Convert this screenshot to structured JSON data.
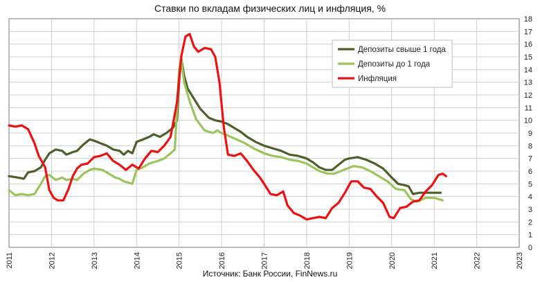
{
  "chart_data": {
    "type": "line",
    "title": "Ставки по вкладам физических лиц и инфляция, %",
    "source": "Источник: Банк России, FinNews.ru",
    "x_ticks": [
      "2011",
      "2012",
      "2013",
      "2014",
      "2015",
      "2016",
      "2017",
      "2018",
      "2019",
      "2020",
      "2021",
      "2022",
      "2023"
    ],
    "y_ticks": [
      "0",
      "1",
      "2",
      "3",
      "4",
      "5",
      "6",
      "7",
      "8",
      "9",
      "10",
      "11",
      "12",
      "13",
      "14",
      "15",
      "16",
      "17",
      "18"
    ],
    "xlim": [
      2011,
      2023
    ],
    "ylim": [
      0,
      18
    ],
    "grid": true,
    "legend_position": "top-right",
    "series": [
      {
        "name": "Депозиты свыше 1 года",
        "color": "#4f5f2a",
        "points": [
          [
            2011.0,
            5.6
          ],
          [
            2011.2,
            5.5
          ],
          [
            2011.35,
            5.4
          ],
          [
            2011.45,
            5.9
          ],
          [
            2011.6,
            6.0
          ],
          [
            2011.75,
            6.3
          ],
          [
            2011.85,
            6.9
          ],
          [
            2011.95,
            7.4
          ],
          [
            2012.1,
            7.7
          ],
          [
            2012.25,
            7.6
          ],
          [
            2012.35,
            7.3
          ],
          [
            2012.5,
            7.5
          ],
          [
            2012.6,
            7.6
          ],
          [
            2012.75,
            8.1
          ],
          [
            2012.9,
            8.5
          ],
          [
            2013.0,
            8.4
          ],
          [
            2013.15,
            8.2
          ],
          [
            2013.3,
            8.0
          ],
          [
            2013.45,
            7.7
          ],
          [
            2013.6,
            7.6
          ],
          [
            2013.7,
            7.3
          ],
          [
            2013.8,
            7.6
          ],
          [
            2013.9,
            7.4
          ],
          [
            2014.0,
            8.3
          ],
          [
            2014.15,
            8.5
          ],
          [
            2014.3,
            8.7
          ],
          [
            2014.4,
            8.9
          ],
          [
            2014.55,
            8.7
          ],
          [
            2014.7,
            9.0
          ],
          [
            2014.85,
            9.4
          ],
          [
            2014.95,
            10.0
          ],
          [
            2015.0,
            13.0
          ],
          [
            2015.05,
            14.9
          ],
          [
            2015.12,
            13.5
          ],
          [
            2015.2,
            12.5
          ],
          [
            2015.35,
            11.7
          ],
          [
            2015.5,
            10.9
          ],
          [
            2015.7,
            10.2
          ],
          [
            2015.85,
            10.0
          ],
          [
            2016.0,
            9.9
          ],
          [
            2016.15,
            9.7
          ],
          [
            2016.3,
            9.4
          ],
          [
            2016.45,
            9.1
          ],
          [
            2016.6,
            8.7
          ],
          [
            2016.8,
            8.3
          ],
          [
            2017.0,
            8.0
          ],
          [
            2017.2,
            7.8
          ],
          [
            2017.4,
            7.6
          ],
          [
            2017.6,
            7.3
          ],
          [
            2017.8,
            7.2
          ],
          [
            2018.0,
            7.0
          ],
          [
            2018.15,
            6.7
          ],
          [
            2018.3,
            6.3
          ],
          [
            2018.45,
            6.1
          ],
          [
            2018.6,
            6.1
          ],
          [
            2018.75,
            6.5
          ],
          [
            2018.9,
            6.9
          ],
          [
            2019.0,
            7.0
          ],
          [
            2019.2,
            7.1
          ],
          [
            2019.4,
            6.9
          ],
          [
            2019.6,
            6.6
          ],
          [
            2019.8,
            6.2
          ],
          [
            2020.0,
            5.5
          ],
          [
            2020.15,
            5.0
          ],
          [
            2020.3,
            4.9
          ],
          [
            2020.4,
            4.8
          ],
          [
            2020.5,
            4.2
          ],
          [
            2020.65,
            4.3
          ],
          [
            2020.8,
            4.3
          ],
          [
            2021.0,
            4.3
          ],
          [
            2021.15,
            4.3
          ]
        ]
      },
      {
        "name": "Депозиты до 1 года",
        "color": "#9cc45c",
        "points": [
          [
            2011.0,
            4.5
          ],
          [
            2011.15,
            4.1
          ],
          [
            2011.3,
            4.2
          ],
          [
            2011.45,
            4.1
          ],
          [
            2011.6,
            4.2
          ],
          [
            2011.75,
            5.0
          ],
          [
            2011.85,
            5.6
          ],
          [
            2011.95,
            5.7
          ],
          [
            2012.1,
            5.3
          ],
          [
            2012.25,
            5.5
          ],
          [
            2012.35,
            5.3
          ],
          [
            2012.5,
            5.4
          ],
          [
            2012.6,
            5.3
          ],
          [
            2012.75,
            5.8
          ],
          [
            2012.9,
            6.1
          ],
          [
            2013.0,
            6.2
          ],
          [
            2013.2,
            6.1
          ],
          [
            2013.35,
            5.8
          ],
          [
            2013.5,
            5.5
          ],
          [
            2013.6,
            5.4
          ],
          [
            2013.7,
            5.2
          ],
          [
            2013.8,
            5.1
          ],
          [
            2013.9,
            5.0
          ],
          [
            2014.0,
            6.1
          ],
          [
            2014.15,
            6.3
          ],
          [
            2014.3,
            6.6
          ],
          [
            2014.5,
            6.8
          ],
          [
            2014.65,
            7.0
          ],
          [
            2014.8,
            7.4
          ],
          [
            2014.9,
            7.7
          ],
          [
            2015.0,
            14.0
          ],
          [
            2015.05,
            14.8
          ],
          [
            2015.12,
            13.0
          ],
          [
            2015.25,
            11.5
          ],
          [
            2015.4,
            10.1
          ],
          [
            2015.6,
            9.2
          ],
          [
            2015.8,
            9.0
          ],
          [
            2015.9,
            9.2
          ],
          [
            2016.0,
            9.0
          ],
          [
            2016.15,
            8.8
          ],
          [
            2016.35,
            8.5
          ],
          [
            2016.55,
            8.2
          ],
          [
            2016.75,
            7.8
          ],
          [
            2017.0,
            7.4
          ],
          [
            2017.2,
            7.2
          ],
          [
            2017.4,
            7.1
          ],
          [
            2017.6,
            6.9
          ],
          [
            2017.8,
            6.8
          ],
          [
            2018.0,
            6.6
          ],
          [
            2018.15,
            6.3
          ],
          [
            2018.3,
            6.0
          ],
          [
            2018.5,
            5.8
          ],
          [
            2018.65,
            5.8
          ],
          [
            2018.8,
            6.0
          ],
          [
            2018.95,
            6.2
          ],
          [
            2019.1,
            6.4
          ],
          [
            2019.3,
            6.3
          ],
          [
            2019.5,
            6.0
          ],
          [
            2019.7,
            5.6
          ],
          [
            2019.9,
            5.2
          ],
          [
            2020.1,
            4.6
          ],
          [
            2020.3,
            4.5
          ],
          [
            2020.45,
            3.8
          ],
          [
            2020.6,
            3.6
          ],
          [
            2020.8,
            3.9
          ],
          [
            2021.0,
            3.9
          ],
          [
            2021.2,
            3.7
          ]
        ]
      },
      {
        "name": "Инфляция",
        "color": "#ee1111",
        "points": [
          [
            2011.0,
            9.6
          ],
          [
            2011.15,
            9.5
          ],
          [
            2011.3,
            9.6
          ],
          [
            2011.45,
            9.3
          ],
          [
            2011.6,
            8.2
          ],
          [
            2011.7,
            7.2
          ],
          [
            2011.85,
            6.3
          ],
          [
            2011.95,
            4.5
          ],
          [
            2012.05,
            3.9
          ],
          [
            2012.15,
            3.7
          ],
          [
            2012.28,
            3.7
          ],
          [
            2012.4,
            4.6
          ],
          [
            2012.5,
            5.6
          ],
          [
            2012.6,
            6.2
          ],
          [
            2012.7,
            6.5
          ],
          [
            2012.85,
            6.6
          ],
          [
            2013.0,
            7.1
          ],
          [
            2013.15,
            7.2
          ],
          [
            2013.3,
            7.4
          ],
          [
            2013.45,
            6.8
          ],
          [
            2013.6,
            6.5
          ],
          [
            2013.75,
            6.1
          ],
          [
            2013.9,
            6.5
          ],
          [
            2014.05,
            6.2
          ],
          [
            2014.2,
            7.0
          ],
          [
            2014.35,
            7.6
          ],
          [
            2014.5,
            7.5
          ],
          [
            2014.65,
            8.0
          ],
          [
            2014.8,
            8.7
          ],
          [
            2014.95,
            11.4
          ],
          [
            2015.05,
            15.0
          ],
          [
            2015.15,
            16.6
          ],
          [
            2015.25,
            16.8
          ],
          [
            2015.35,
            15.8
          ],
          [
            2015.45,
            15.4
          ],
          [
            2015.6,
            15.7
          ],
          [
            2015.75,
            15.6
          ],
          [
            2015.85,
            15.0
          ],
          [
            2015.95,
            13.0
          ],
          [
            2016.05,
            9.5
          ],
          [
            2016.15,
            7.3
          ],
          [
            2016.3,
            7.2
          ],
          [
            2016.45,
            7.4
          ],
          [
            2016.6,
            6.8
          ],
          [
            2016.75,
            6.1
          ],
          [
            2016.9,
            5.5
          ],
          [
            2017.0,
            5.0
          ],
          [
            2017.15,
            4.2
          ],
          [
            2017.3,
            4.1
          ],
          [
            2017.45,
            4.4
          ],
          [
            2017.55,
            3.3
          ],
          [
            2017.7,
            2.7
          ],
          [
            2017.85,
            2.5
          ],
          [
            2018.0,
            2.2
          ],
          [
            2018.15,
            2.3
          ],
          [
            2018.3,
            2.4
          ],
          [
            2018.45,
            2.3
          ],
          [
            2018.6,
            3.1
          ],
          [
            2018.75,
            3.5
          ],
          [
            2018.9,
            4.3
          ],
          [
            2019.05,
            5.2
          ],
          [
            2019.2,
            5.2
          ],
          [
            2019.35,
            4.7
          ],
          [
            2019.5,
            4.6
          ],
          [
            2019.65,
            4.0
          ],
          [
            2019.8,
            3.5
          ],
          [
            2019.95,
            2.4
          ],
          [
            2020.05,
            2.3
          ],
          [
            2020.2,
            3.1
          ],
          [
            2020.35,
            3.2
          ],
          [
            2020.5,
            3.6
          ],
          [
            2020.65,
            3.7
          ],
          [
            2020.8,
            4.4
          ],
          [
            2020.95,
            4.9
          ],
          [
            2021.1,
            5.7
          ],
          [
            2021.2,
            5.8
          ],
          [
            2021.28,
            5.6
          ]
        ]
      }
    ]
  }
}
